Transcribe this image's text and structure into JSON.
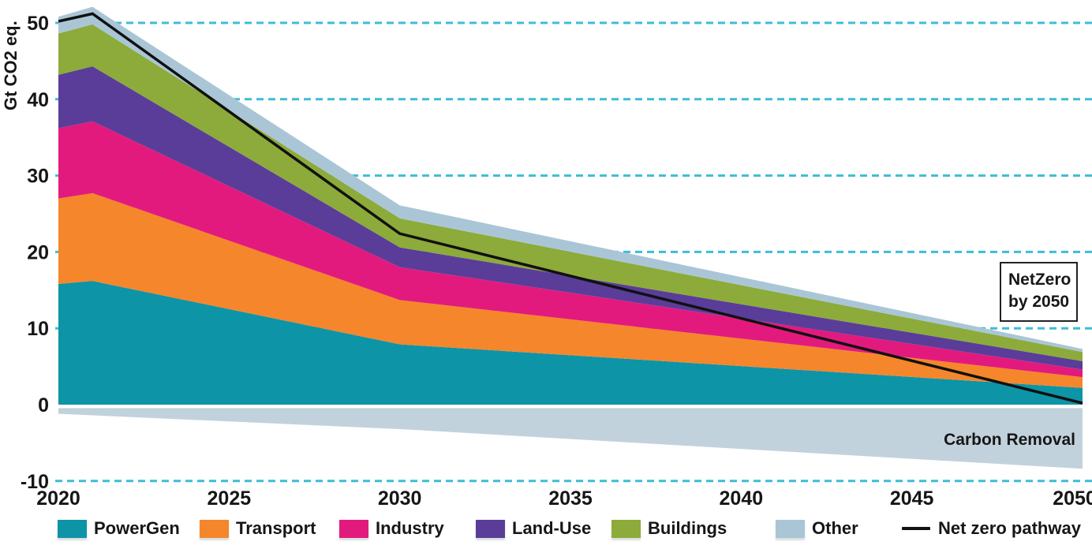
{
  "chart_data": {
    "type": "area",
    "stacked": true,
    "ylabel": "Gt CO2 eq.",
    "x": [
      2020,
      2021,
      2030,
      2050
    ],
    "x_ticks": [
      2020,
      2025,
      2030,
      2035,
      2040,
      2045,
      2050
    ],
    "y_ticks": [
      50,
      40,
      30,
      20,
      10,
      0,
      -10
    ],
    "grid_values": [
      50,
      40,
      30,
      20,
      10,
      -10
    ],
    "xlim": [
      2020,
      2050
    ],
    "ylim": [
      -10.5,
      53
    ],
    "grid_on": true,
    "gridline_color": "#3ebcd6",
    "legend_position": "bottom",
    "series": [
      {
        "name": "PowerGen",
        "color": "#0d94a7",
        "values": [
          15.8,
          16.2,
          7.9,
          2.2
        ]
      },
      {
        "name": "Transport",
        "color": "#f5862b",
        "values": [
          11.2,
          11.5,
          5.8,
          1.4
        ]
      },
      {
        "name": "Industry",
        "color": "#e31a7d",
        "values": [
          9.2,
          9.4,
          4.3,
          1.0
        ]
      },
      {
        "name": "Land-Use",
        "color": "#5a3d99",
        "values": [
          7.0,
          7.2,
          2.6,
          1.1
        ]
      },
      {
        "name": "Buildings",
        "color": "#8cab3a",
        "values": [
          5.4,
          5.5,
          3.8,
          1.2
        ]
      },
      {
        "name": "Other",
        "color": "#aac6d6",
        "values": [
          2.2,
          2.3,
          1.7,
          0.4
        ]
      }
    ],
    "carbon_removal": {
      "label": "Carbon Removal",
      "color": "#c2d2dc",
      "top": -0.45,
      "values": [
        -1.2,
        -1.4,
        -3.2,
        -8.4
      ]
    },
    "net_zero_line": {
      "name": "Net zero pathway",
      "color": "#111111",
      "values": [
        50.2,
        51.2,
        22.4,
        0.2
      ]
    },
    "annotation_box": {
      "line1": "NetZero",
      "line2": "by 2050"
    }
  }
}
